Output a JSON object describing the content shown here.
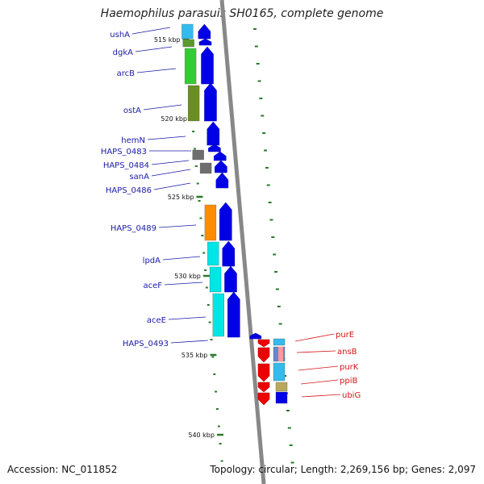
{
  "title": "Haemophilus parasuis SH0165, complete genome",
  "footer": {
    "accession": "Accession: NC_011852",
    "topology": "Topology: circular; Length: 2,269,156 bp; Genes: 2,097"
  },
  "colors": {
    "forward_label": "#1a1aa8",
    "reverse_label": "#d41414",
    "backbone": "#888888",
    "tick": "#2a7a2a",
    "cds_arrow": "#0000e6",
    "rev_arrow": "#ee0000"
  },
  "kbp_ticks": [
    "515 kbp",
    "520 kbp",
    "525 kbp",
    "530 kbp",
    "535 kbp",
    "540 kbp"
  ],
  "forward_genes": [
    "ushA",
    "dgkA",
    "arcB",
    "ostA",
    "hemN",
    "HAPS_0483",
    "HAPS_0484",
    "sanA",
    "HAPS_0486",
    "HAPS_0489",
    "lpdA",
    "aceF",
    "aceE",
    "HAPS_0493"
  ],
  "reverse_genes": [
    "purE",
    "ansB",
    "purK",
    "ppiB",
    "ubiG"
  ]
}
